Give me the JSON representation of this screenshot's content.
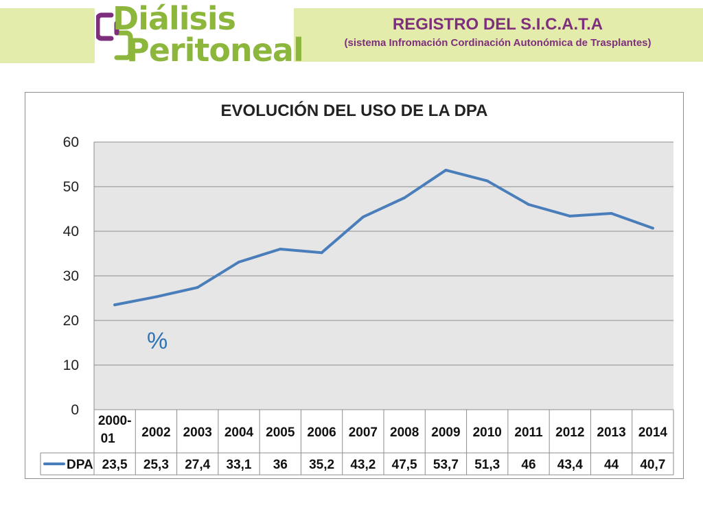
{
  "header": {
    "logo_line1": "Diálisis",
    "logo_line2": "Peritoneal",
    "registry_title": "REGISTRO DEL S.I.C.A.T.A",
    "registry_subtitle": "(sistema Infromación Cordinación Autonómica de Trasplantes)"
  },
  "colors": {
    "banner": "#e4ecac",
    "logo_green": "#8cb63c",
    "logo_purple": "#7e2f7c",
    "title_purple": "#7e2f7c",
    "series": "#4a7ebb",
    "plot_bg": "#e6e6e6",
    "percent": "#2e74b5"
  },
  "icons": {
    "logo_mark": "interlocking-brackets-icon"
  },
  "chart_data": {
    "type": "line",
    "title": "EVOLUCIÓN DEL USO DE LA DPA",
    "unit_annotation": "%",
    "categories": [
      "2000-01",
      "2002",
      "2003",
      "2004",
      "2005",
      "2006",
      "2007",
      "2008",
      "2009",
      "2010",
      "2011",
      "2012",
      "2013",
      "2014"
    ],
    "series": [
      {
        "name": "DPA",
        "values": [
          23.5,
          25.3,
          27.4,
          33.1,
          36,
          35.2,
          43.2,
          47.5,
          53.7,
          51.3,
          46,
          43.4,
          44,
          40.7
        ],
        "labels": [
          "23,5",
          "25,3",
          "27,4",
          "33,1",
          "36",
          "35,2",
          "43,2",
          "47,5",
          "53,7",
          "51,3",
          "46",
          "43,4",
          "44",
          "40,7"
        ]
      }
    ],
    "ylim": [
      0,
      60
    ],
    "yticks": [
      0,
      10,
      20,
      30,
      40,
      50,
      60
    ],
    "grid": true,
    "legend": "data-table",
    "xlabel": "",
    "ylabel": ""
  }
}
